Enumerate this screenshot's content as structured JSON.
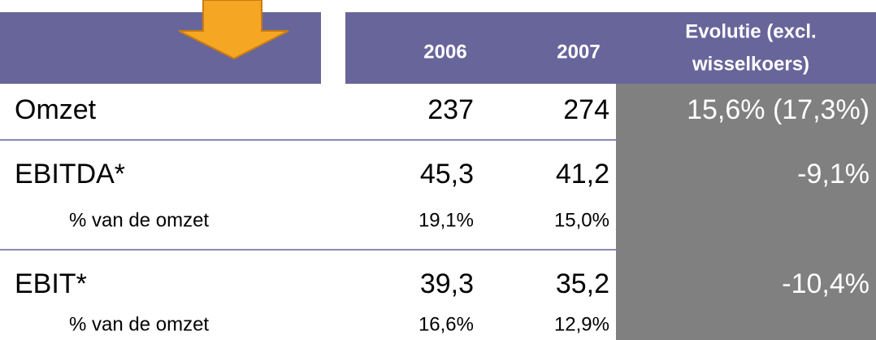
{
  "table": {
    "header": [
      "2006",
      "2007",
      [
        "Evolutie (excl.",
        "wisselkoers)"
      ]
    ],
    "rows": [
      {
        "label": "Omzet",
        "style": "main",
        "cells": [
          "237",
          "274",
          "15,6% (17,3%)"
        ]
      },
      {
        "label": "EBITDA*",
        "style": "main",
        "cells": [
          "45,3",
          "41,2",
          "-9,1%"
        ]
      },
      {
        "label": "% van de omzet",
        "style": "sub",
        "cells": [
          "19,1%",
          "15,0%"
        ]
      },
      {
        "label": "EBIT*",
        "style": "main",
        "cells": [
          "39,3",
          "35,2",
          "-10,4%"
        ]
      },
      {
        "label": "% van de omzet",
        "style": "sub",
        "cells": [
          "16,6%",
          "12,9%"
        ]
      }
    ]
  }
}
